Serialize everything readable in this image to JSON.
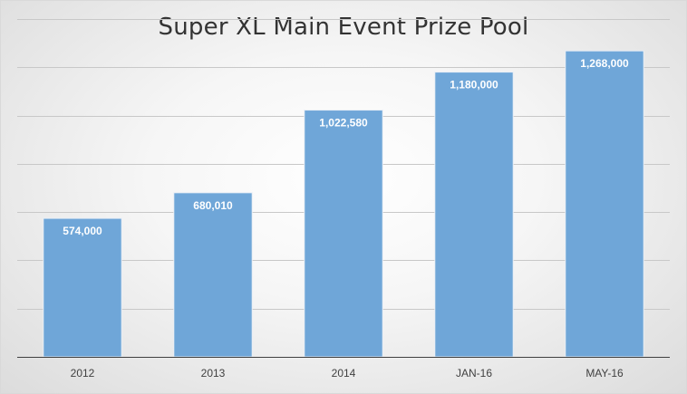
{
  "chart_data": {
    "type": "bar",
    "title": "Super XL Main Event Prize Pool",
    "xlabel": "",
    "ylabel": "",
    "categories": [
      "2012",
      "2013",
      "2014",
      "JAN-16",
      "MAY-16"
    ],
    "values": [
      574000,
      680010,
      1022580,
      1180000,
      1268000
    ],
    "value_labels": [
      "574,000",
      "680,010",
      "1,022,580",
      "1,180,000",
      "1,268,000"
    ],
    "ylim": [
      0,
      1400000
    ],
    "grid": true,
    "legend": "none",
    "colors": {
      "bar": "#6fa6d8",
      "bar_edge": "#e8eef6",
      "grid": "#c8c8c8",
      "axis": "#404040"
    }
  }
}
